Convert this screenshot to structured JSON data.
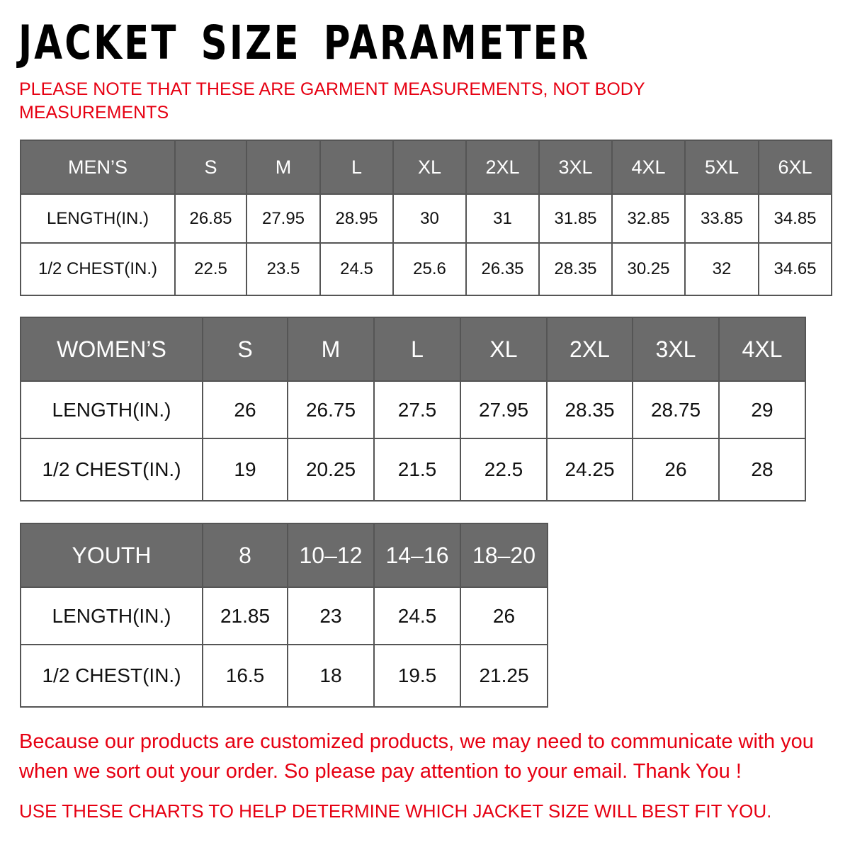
{
  "title": "JACKET SIZE PARAMETER",
  "note": "PLEASE NOTE THAT THESE ARE GARMENT MEASUREMENTS, NOT BODY MEASUREMENTS",
  "colors": {
    "header_bg": "#6b6b6b",
    "accent_red": "#e60012"
  },
  "men": {
    "headers": [
      "MEN’S",
      "S",
      "M",
      "L",
      "XL",
      "2XL",
      "3XL",
      "4XL",
      "5XL",
      "6XL"
    ],
    "rows": [
      [
        "LENGTH(IN.)",
        "26.85",
        "27.95",
        "28.95",
        "30",
        "31",
        "31.85",
        "32.85",
        "33.85",
        "34.85"
      ],
      [
        "1/2 CHEST(IN.)",
        "22.5",
        "23.5",
        "24.5",
        "25.6",
        "26.35",
        "28.35",
        "30.25",
        "32",
        "34.65"
      ]
    ]
  },
  "women": {
    "headers": [
      "WOMEN’S",
      "S",
      "M",
      "L",
      "XL",
      "2XL",
      "3XL",
      "4XL"
    ],
    "rows": [
      [
        "LENGTH(IN.)",
        "26",
        "26.75",
        "27.5",
        "27.95",
        "28.35",
        "28.75",
        "29"
      ],
      [
        "1/2 CHEST(IN.)",
        "19",
        "20.25",
        "21.5",
        "22.5",
        "24.25",
        "26",
        "28"
      ]
    ]
  },
  "youth": {
    "headers": [
      "YOUTH",
      "8",
      "10–12",
      "14–16",
      "18–20"
    ],
    "rows": [
      [
        "LENGTH(IN.)",
        "21.85",
        "23",
        "24.5",
        "26"
      ],
      [
        "1/2 CHEST(IN.)",
        "16.5",
        "18",
        "19.5",
        "21.25"
      ]
    ]
  },
  "footer": "Because our products are customized products, we may need to communicate with you when we sort out your order. So please pay attention to your email. Thank You !",
  "footer2": "USE THESE CHARTS TO HELP DETERMINE WHICH JACKET SIZE WILL BEST FIT YOU."
}
